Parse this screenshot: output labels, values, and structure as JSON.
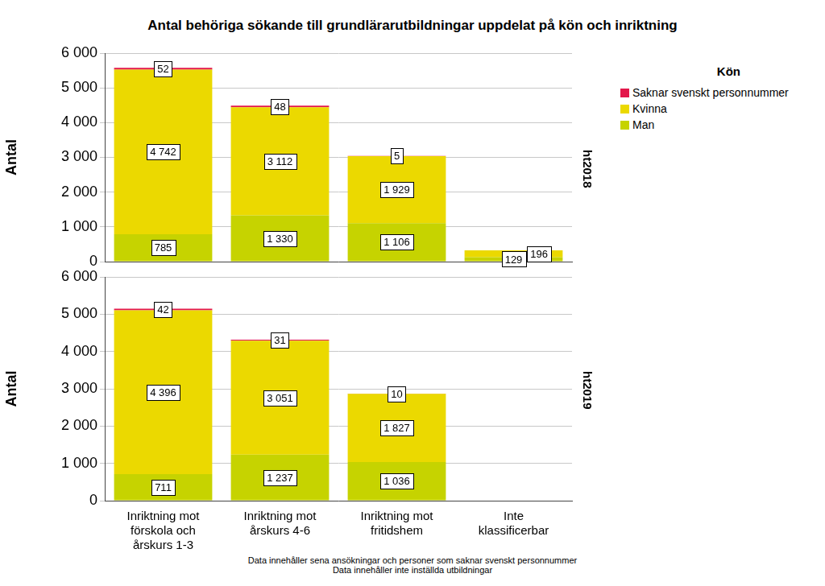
{
  "title": "Antal behöriga sökande till grundlärarutbildningar uppdelat på kön och inriktning",
  "legend_title": "Kön",
  "notes": [
    "Data innehåller sena ansökningar och personer som saknar svenskt personnummer",
    "Data innehåller inte inställda utbildningar"
  ],
  "chart_data": [
    {
      "type": "bar",
      "subtitle": "ht2018",
      "y_label": "Antal",
      "stacked": true,
      "data_labels": true,
      "grid": true,
      "legend": "top right",
      "tick_labels": "y",
      "categories": [
        "Inriktning mot förskola och årskurs 1-3",
        "Inriktning mot årskurs 4-6",
        "Inriktning mot fritidshem",
        "Inte klassificerbar"
      ],
      "ylim": [
        0,
        6000
      ],
      "yticks": [
        0,
        {
          "value": 1000,
          "label": "1 000"
        },
        {
          "value": 2000,
          "label": "2 000"
        },
        {
          "value": 3000,
          "label": "3 000"
        },
        {
          "value": 4000,
          "label": "4 000"
        },
        {
          "value": 5000,
          "label": "5 000"
        },
        {
          "value": 6000,
          "label": "6 000"
        }
      ],
      "series": [
        {
          "name": "Man",
          "color": "#c6d300",
          "values": [
            785,
            1330,
            1106,
            129
          ],
          "value_labels": [
            "785",
            "1 330",
            "1 106",
            "129"
          ]
        },
        {
          "name": "Kvinna",
          "color": "#ebd900",
          "values": [
            4742,
            3112,
            1929,
            196
          ],
          "value_labels": [
            "4 742",
            "3 112",
            "1 929",
            "196"
          ]
        },
        {
          "name": "Saknar svenskt personnummer",
          "color": "#e3184b",
          "values": [
            52,
            48,
            5,
            null
          ],
          "value_labels": [
            "52",
            "48",
            "5",
            null
          ]
        }
      ]
    },
    {
      "type": "bar",
      "subtitle": "ht2019",
      "y_label": "Antal",
      "stacked": true,
      "data_labels": true,
      "grid": true,
      "categories": [
        "Inriktning mot förskola och årskurs 1-3",
        "Inriktning mot årskurs 4-6",
        "Inriktning mot fritidshem",
        "Inte klassificerbar"
      ],
      "ylim": [
        0,
        6000
      ],
      "yticks": [
        0,
        {
          "value": 1000,
          "label": "1 000"
        },
        {
          "value": 2000,
          "label": "2 000"
        },
        {
          "value": 3000,
          "label": "3 000"
        },
        {
          "value": 4000,
          "label": "4 000"
        },
        {
          "value": 5000,
          "label": "5 000"
        },
        {
          "value": 6000,
          "label": "6 000"
        }
      ],
      "series": [
        {
          "name": "Man",
          "color": "#c6d300",
          "values": [
            711,
            1237,
            1036,
            null
          ],
          "value_labels": [
            "711",
            "1 237",
            "1 036",
            null
          ]
        },
        {
          "name": "Kvinna",
          "color": "#ebd900",
          "values": [
            4396,
            3051,
            1827,
            null
          ],
          "value_labels": [
            "4 396",
            "3 051",
            "1 827",
            null
          ]
        },
        {
          "name": "Saknar svenskt personnummer",
          "color": "#e3184b",
          "values": [
            42,
            31,
            10,
            null
          ],
          "value_labels": [
            "42",
            "31",
            "10",
            null
          ]
        }
      ]
    }
  ]
}
